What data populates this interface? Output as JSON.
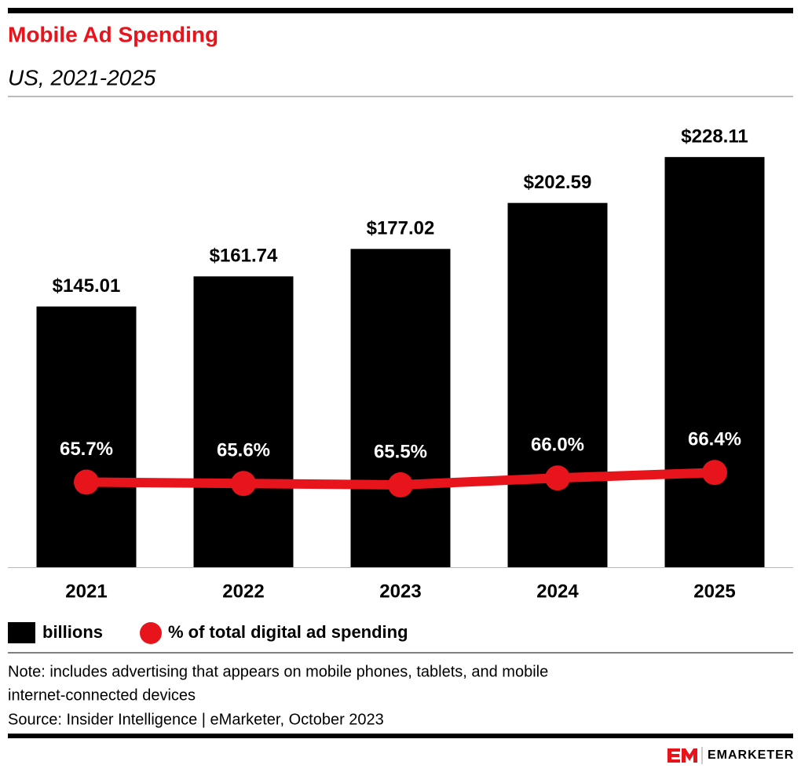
{
  "chart_data": {
    "type": "bar_line",
    "title": "Mobile Ad Spending",
    "subtitle": "US, 2021-2025",
    "categories": [
      "2021",
      "2022",
      "2023",
      "2024",
      "2025"
    ],
    "ylim": [
      0,
      250
    ],
    "y2lim": [
      59.5,
      92.25
    ],
    "series": [
      {
        "name": "billions",
        "type": "bar",
        "color": "#000000",
        "values": [
          145.01,
          161.74,
          177.02,
          202.59,
          228.11
        ],
        "value_labels": [
          "$145.01",
          "$161.74",
          "$177.02",
          "$202.59",
          "$228.11"
        ]
      },
      {
        "name": "% of total digital ad spending",
        "type": "line",
        "axis": "y2",
        "color": "#e8141c",
        "values": [
          65.7,
          65.6,
          65.5,
          66.0,
          66.4
        ],
        "value_labels": [
          "65.7%",
          "65.6%",
          "65.5%",
          "66.0%",
          "66.4%"
        ]
      }
    ],
    "note": "Note: includes advertising that appears on mobile phones, tablets, and mobile",
    "note_line2": "internet-connected devices",
    "source": "Source: Insider Intelligence | eMarketer, October 2023",
    "brand": "EMARKETER"
  }
}
